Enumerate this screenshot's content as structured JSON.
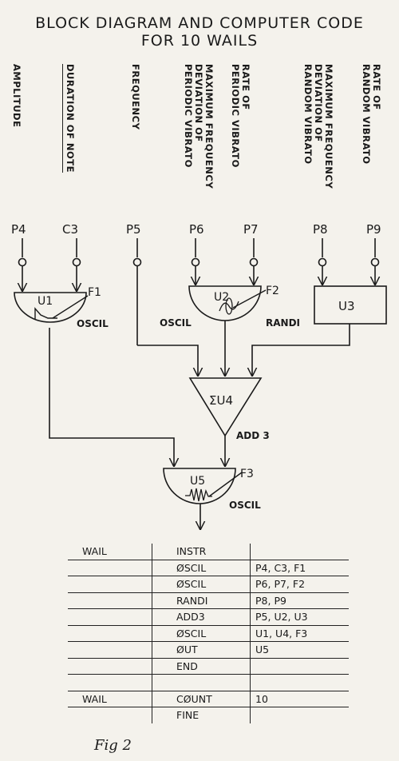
{
  "title_line1": "BLOCK DIAGRAM AND COMPUTER CODE",
  "title_line2": "FOR 10 WAILS",
  "column_labels": [
    "AMPLITUDE",
    "DURATION OF NOTE",
    "FREQUENCY",
    "MAXIMUM FREQUENCY\nDEVIATION OF\nPERIODIC VIBRATO",
    "RATE OF\nPERIODIC VIBRATO",
    "MAXIMUM FREQUENCY\nDEVIATION OF\nRANDOM VIBRATO",
    "RATE OF\nRANDOM VIBRATO"
  ],
  "pfields": [
    "P4",
    "C3",
    "P5",
    "P6",
    "P7",
    "P8",
    "P9"
  ],
  "units": {
    "u1": {
      "name": "U1",
      "func": "F1",
      "type": "OSCIL"
    },
    "u2": {
      "name": "U2",
      "func": "F2",
      "type_left": "OSCIL",
      "type_right": "RANDI"
    },
    "u3": {
      "name": "U3"
    },
    "u4": {
      "name": "ΣU4",
      "type": "ADD 3"
    },
    "u5": {
      "name": "U5",
      "func": "F3",
      "type": "OSCIL"
    }
  },
  "code": [
    {
      "label": "WAIL",
      "op": "INSTR",
      "args": ""
    },
    {
      "label": "",
      "op": "ØSCIL",
      "args": "P4, C3, F1"
    },
    {
      "label": "",
      "op": "ØSCIL",
      "args": "P6, P7, F2"
    },
    {
      "label": "",
      "op": "RANDI",
      "args": "P8, P9"
    },
    {
      "label": "",
      "op": "ADD3",
      "args": "P5, U2, U3"
    },
    {
      "label": "",
      "op": "ØSCIL",
      "args": "U1, U4, F3"
    },
    {
      "label": "",
      "op": "ØUT",
      "args": "U5"
    },
    {
      "label": "",
      "op": "END",
      "args": ""
    },
    {
      "label": "",
      "op": "",
      "args": ""
    },
    {
      "label": "WAIL",
      "op": "CØUNT",
      "args": "10"
    },
    {
      "label": "",
      "op": "FINE",
      "args": ""
    }
  ],
  "figure_label": "Fig 2"
}
